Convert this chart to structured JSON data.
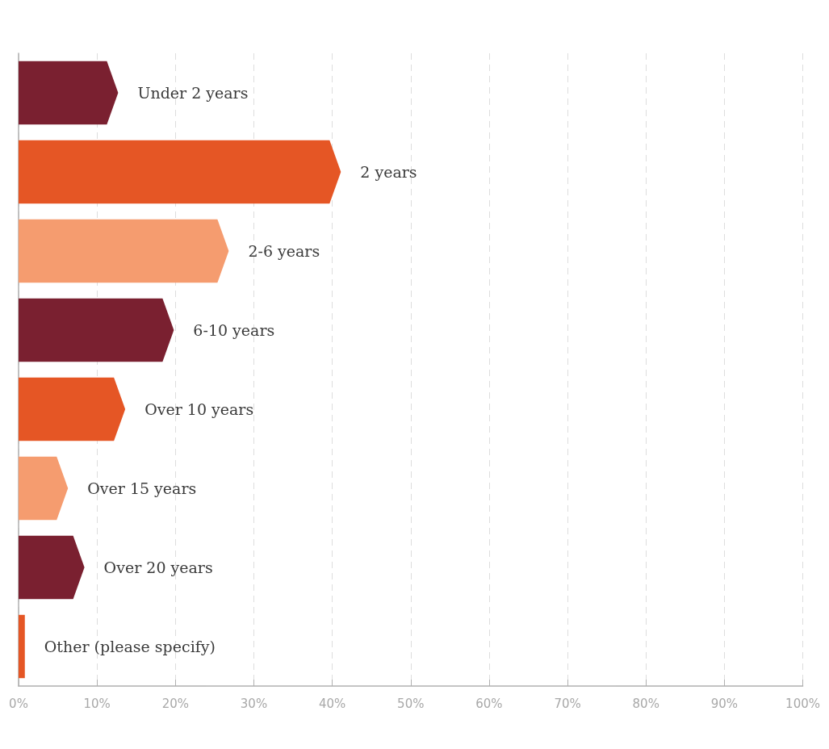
{
  "chart_data": {
    "type": "bar",
    "orientation": "horizontal",
    "categories": [
      "Under 2 years",
      "2 years",
      "2-6 years",
      "6-10 years",
      "Over 10 years",
      "Over 15 years",
      "Over 20 years",
      "Other (please specify)"
    ],
    "values": [
      12.7,
      41.1,
      26.8,
      19.8,
      13.6,
      6.3,
      8.4,
      0.8
    ],
    "colors": [
      "#7a2030",
      "#e55625",
      "#f59c6f",
      "#7a2030",
      "#e55625",
      "#f59c6f",
      "#7a2030",
      "#e55625"
    ],
    "xlim": [
      0,
      100
    ],
    "xticks": [
      {
        "value": 0,
        "label": "0%"
      },
      {
        "value": 10,
        "label": "10%"
      },
      {
        "value": 20,
        "label": "20%"
      },
      {
        "value": 30,
        "label": "30%"
      },
      {
        "value": 40,
        "label": "40%"
      },
      {
        "value": 50,
        "label": "50%"
      },
      {
        "value": 60,
        "label": "60%"
      },
      {
        "value": 70,
        "label": "70%"
      },
      {
        "value": 80,
        "label": "80%"
      },
      {
        "value": 90,
        "label": "90%"
      },
      {
        "value": 100,
        "label": "100%"
      }
    ],
    "grid": "x"
  }
}
